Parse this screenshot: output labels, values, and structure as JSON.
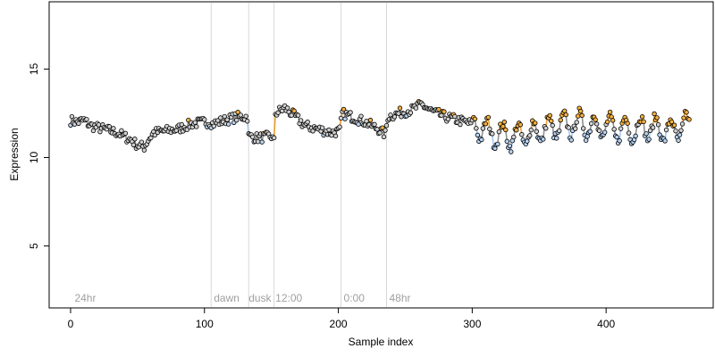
{
  "chart_data": {
    "type": "scatter",
    "title": "",
    "xlabel": "Sample index",
    "ylabel": "Expression",
    "xlim": [
      -16,
      480
    ],
    "ylim": [
      1.5,
      18.8
    ],
    "x_ticks": [
      0,
      100,
      200,
      300,
      400
    ],
    "y_ticks": [
      5,
      10,
      15
    ],
    "grid": false,
    "legend": "none",
    "phase_boundaries": [
      105,
      133,
      152,
      202,
      236
    ],
    "phase_labels": [
      {
        "text": "24hr",
        "x": 3
      },
      {
        "text": "dawn",
        "x": 107
      },
      {
        "text": "dusk",
        "x": 133
      },
      {
        "text": "12:00",
        "x": 153
      },
      {
        "text": "0:00",
        "x": 204
      },
      {
        "text": "48hr",
        "x": 238
      }
    ],
    "colors": {
      "line_segment_high": "#f0a030",
      "line_segment_low": "#a9c8f0",
      "line_segment_mid": "#909090",
      "point_high": "#f5b040",
      "point_low": "#b8d4f4",
      "point_mid": "#d0d0d0",
      "phase_line": "#d8d8d8"
    },
    "series": [
      {
        "knots": [
          [
            0,
            12.1
          ],
          [
            5,
            12.0
          ],
          [
            10,
            12.1
          ],
          [
            15,
            11.8
          ],
          [
            20,
            11.7
          ],
          [
            25,
            11.6
          ],
          [
            30,
            11.5
          ],
          [
            35,
            11.4
          ],
          [
            40,
            11.2
          ],
          [
            45,
            11.0
          ],
          [
            50,
            10.7
          ],
          [
            55,
            10.6
          ],
          [
            58,
            11.0
          ],
          [
            62,
            11.4
          ],
          [
            70,
            11.5
          ],
          [
            80,
            11.6
          ],
          [
            90,
            11.9
          ],
          [
            100,
            12.0
          ],
          [
            104,
            12.0
          ],
          [
            106,
            11.9
          ],
          [
            115,
            12.1
          ],
          [
            125,
            12.3
          ],
          [
            132,
            12.3
          ],
          [
            133,
            11.2
          ],
          [
            140,
            11.1
          ],
          [
            150,
            11.2
          ],
          [
            152,
            10.9
          ],
          [
            153,
            12.5
          ],
          [
            160,
            12.8
          ],
          [
            168,
            12.3
          ],
          [
            175,
            11.8
          ],
          [
            185,
            11.6
          ],
          [
            195,
            11.4
          ],
          [
            201,
            11.5
          ],
          [
            203,
            12.5
          ],
          [
            210,
            12.3
          ],
          [
            220,
            12.0
          ],
          [
            230,
            11.6
          ],
          [
            235,
            11.3
          ],
          [
            237,
            12.3
          ],
          [
            245,
            12.5
          ],
          [
            255,
            12.7
          ],
          [
            262,
            13.0
          ],
          [
            270,
            12.6
          ],
          [
            280,
            12.3
          ],
          [
            290,
            12.1
          ],
          [
            300,
            11.9
          ],
          [
            310,
            11.5
          ],
          [
            320,
            11.3
          ],
          [
            330,
            11.2
          ],
          [
            340,
            11.3
          ],
          [
            350,
            11.5
          ],
          [
            360,
            11.7
          ],
          [
            370,
            11.8
          ],
          [
            380,
            11.9
          ],
          [
            390,
            11.8
          ],
          [
            400,
            11.7
          ],
          [
            410,
            11.6
          ],
          [
            420,
            11.6
          ],
          [
            430,
            11.7
          ],
          [
            440,
            11.6
          ],
          [
            450,
            11.5
          ],
          [
            460,
            11.8
          ]
        ]
      }
    ]
  }
}
